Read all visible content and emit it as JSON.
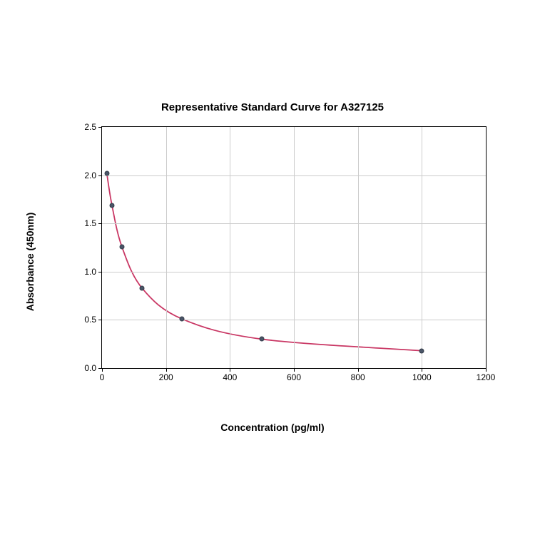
{
  "chart": {
    "type": "scatter",
    "title": "Representative Standard Curve for A327125",
    "title_fontsize": 15,
    "xlabel": "Concentration (pg/ml)",
    "ylabel": "Absorbance (450nm)",
    "label_fontsize": 14,
    "tick_fontsize": 12,
    "xlim": [
      0,
      1200
    ],
    "ylim": [
      0.0,
      2.5
    ],
    "xtick_step": 200,
    "ytick_step": 0.5,
    "xticks": [
      0,
      200,
      400,
      600,
      800,
      1000,
      1200
    ],
    "yticks": [
      0.0,
      0.5,
      1.0,
      1.5,
      2.0,
      2.5
    ],
    "ytick_labels": [
      "0.0",
      "0.5",
      "1.0",
      "1.5",
      "2.0",
      "2.5"
    ],
    "xtick_labels": [
      "0",
      "200",
      "400",
      "600",
      "800",
      "1000",
      "1200"
    ],
    "background_color": "#ffffff",
    "grid_color": "#cccccc",
    "border_color": "#000000",
    "line_color": "#c93764",
    "line_width": 1.8,
    "marker_color": "#4a5568",
    "marker_edge_color": "#333333",
    "marker_size": 7,
    "data_points": [
      {
        "x": 15,
        "y": 2.02
      },
      {
        "x": 31,
        "y": 1.69
      },
      {
        "x": 62,
        "y": 1.26
      },
      {
        "x": 125,
        "y": 0.83
      },
      {
        "x": 250,
        "y": 0.51
      },
      {
        "x": 500,
        "y": 0.3
      },
      {
        "x": 1000,
        "y": 0.18
      }
    ]
  }
}
